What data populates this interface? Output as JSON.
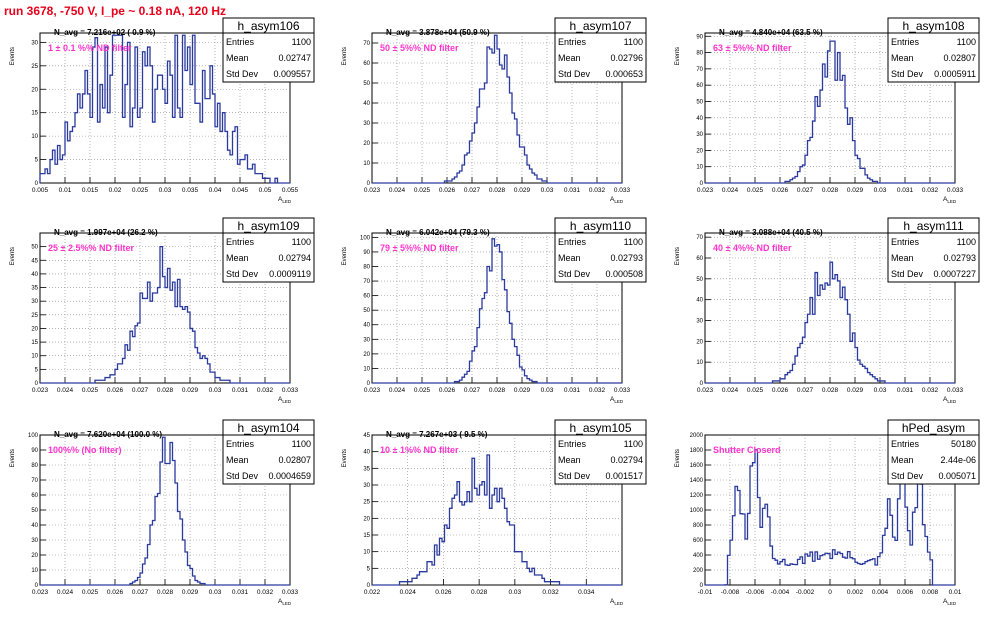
{
  "page": {
    "title": "run 3678,  -750 V, I_pe ~ 0.18 nA, 120 Hz"
  },
  "colors": {
    "histogram": "#2b3a9e",
    "title_text": "#e8001c",
    "filter_text": "#ff33cc",
    "grid": "#888888"
  },
  "stats_labels": {
    "entries": "Entries",
    "mean": "Mean",
    "std": "Std Dev"
  },
  "chart_data": [
    {
      "type": "bar",
      "name": "h_asym106",
      "entries": "1100",
      "mean": "0.02747",
      "std": "0.009557",
      "navg": "N_avg = 7.216e+02 ( 0.9 %)",
      "filter": "1 ± 0.1 %% ND filter",
      "xlabel": "A_LED",
      "ylabel": "Events",
      "xlim": [
        0.005,
        0.055
      ],
      "ylim": [
        0,
        32
      ],
      "xticks": [
        "0.005",
        "0.01",
        "0.015",
        "0.02",
        "0.025",
        "0.03",
        "0.035",
        "0.04",
        "0.045",
        "0.05",
        "0.055"
      ],
      "yticks": [
        "0",
        "5",
        "10",
        "15",
        "20",
        "25",
        "30"
      ],
      "shape": {
        "kind": "bimodal",
        "peaks": [
          [
            0.0185,
            0.006,
            26
          ],
          [
            0.035,
            0.006,
            26
          ]
        ],
        "noise": 0.5,
        "seed": 11
      }
    },
    {
      "type": "bar",
      "name": "h_asym107",
      "entries": "1100",
      "mean": "0.02796",
      "std": "0.000653",
      "navg": "N_avg = 3.878e+04 (50.9 %)",
      "filter": "50 ± 5%% ND filter",
      "xlabel": "A_LED",
      "ylabel": "Events",
      "xlim": [
        0.023,
        0.033
      ],
      "ylim": [
        0,
        75
      ],
      "xticks": [
        "0.023",
        "0.024",
        "0.025",
        "0.026",
        "0.027",
        "0.028",
        "0.029",
        "0.03",
        "0.031",
        "0.032",
        "0.033"
      ],
      "yticks": [
        "0",
        "10",
        "20",
        "30",
        "40",
        "50",
        "60",
        "70"
      ],
      "shape": {
        "kind": "gauss",
        "mu": 0.02796,
        "sigma": 0.000653,
        "peak": 68,
        "noise": 0.15,
        "seed": 7
      }
    },
    {
      "type": "bar",
      "name": "h_asym108",
      "entries": "1100",
      "mean": "0.02807",
      "std": "0.0005911",
      "navg": "N_avg = 4.840e+04 (63.5 %)",
      "filter": "63 ± 5%% ND filter",
      "xlabel": "A_LED",
      "ylabel": "Events",
      "xlim": [
        0.023,
        0.033
      ],
      "ylim": [
        0,
        92
      ],
      "xticks": [
        "0.023",
        "0.024",
        "0.025",
        "0.026",
        "0.027",
        "0.028",
        "0.029",
        "0.03",
        "0.031",
        "0.032",
        "0.033"
      ],
      "yticks": [
        "0",
        "10",
        "20",
        "30",
        "40",
        "50",
        "60",
        "70",
        "80",
        "90"
      ],
      "shape": {
        "kind": "gauss",
        "mu": 0.02807,
        "sigma": 0.000591,
        "peak": 80,
        "noise": 0.2,
        "seed": 3
      }
    },
    {
      "type": "bar",
      "name": "h_asym109",
      "entries": "1100",
      "mean": "0.02794",
      "std": "0.0009119",
      "navg": "N_avg = 1.997e+04 (26.2 %)",
      "filter": "25 ± 2.5%% ND filter",
      "xlabel": "A_LED",
      "ylabel": "Events",
      "xlim": [
        0.023,
        0.033
      ],
      "ylim": [
        0,
        55
      ],
      "xticks": [
        "0.023",
        "0.024",
        "0.025",
        "0.026",
        "0.027",
        "0.028",
        "0.029",
        "0.03",
        "0.031",
        "0.032",
        "0.033"
      ],
      "yticks": [
        "0",
        "5",
        "10",
        "15",
        "20",
        "25",
        "30",
        "35",
        "40",
        "45",
        "50"
      ],
      "shape": {
        "kind": "gauss",
        "mu": 0.02794,
        "sigma": 0.00091,
        "peak": 44,
        "noise": 0.25,
        "seed": 5
      }
    },
    {
      "type": "bar",
      "name": "h_asym110",
      "entries": "1100",
      "mean": "0.02793",
      "std": "0.000508",
      "navg": "N_avg = 6.042e+04 (79.3 %)",
      "filter": "79 ± 5%% ND filter",
      "xlabel": "A_LED",
      "ylabel": "Events",
      "xlim": [
        0.023,
        0.033
      ],
      "ylim": [
        0,
        103
      ],
      "xticks": [
        "0.023",
        "0.024",
        "0.025",
        "0.026",
        "0.027",
        "0.028",
        "0.029",
        "0.03",
        "0.031",
        "0.032",
        "0.033"
      ],
      "yticks": [
        "0",
        "10",
        "20",
        "30",
        "40",
        "50",
        "60",
        "70",
        "80",
        "90",
        "100"
      ],
      "shape": {
        "kind": "gauss",
        "mu": 0.02793,
        "sigma": 0.000508,
        "peak": 90,
        "noise": 0.12,
        "seed": 9
      }
    },
    {
      "type": "bar",
      "name": "h_asym111",
      "entries": "1100",
      "mean": "0.02793",
      "std": "0.0007227",
      "navg": "N_avg = 3.088e+04 (40.5 %)",
      "filter": "40 ± 4%% ND filter",
      "xlabel": "A_LED",
      "ylabel": "Events",
      "xlim": [
        0.023,
        0.033
      ],
      "ylim": [
        0,
        72
      ],
      "xticks": [
        "0.023",
        "0.024",
        "0.025",
        "0.026",
        "0.027",
        "0.028",
        "0.029",
        "0.03",
        "0.031",
        "0.032",
        "0.033"
      ],
      "yticks": [
        "0",
        "10",
        "20",
        "30",
        "40",
        "50",
        "60",
        "70"
      ],
      "shape": {
        "kind": "gauss",
        "mu": 0.02793,
        "sigma": 0.000723,
        "peak": 56,
        "noise": 0.2,
        "seed": 13
      }
    },
    {
      "type": "bar",
      "name": "h_asym104",
      "entries": "1100",
      "mean": "0.02807",
      "std": "0.0004659",
      "navg": "N_avg = 7.620e+04 (100.0 %)",
      "filter": "100%% (No filter)",
      "xlabel": "A_LED",
      "ylabel": "Events",
      "xlim": [
        0.023,
        0.033
      ],
      "ylim": [
        0,
        100
      ],
      "xticks": [
        "0.023",
        "0.024",
        "0.025",
        "0.026",
        "0.027",
        "0.028",
        "0.029",
        "0.03",
        "0.031",
        "0.032",
        "0.033"
      ],
      "yticks": [
        "0",
        "10",
        "20",
        "30",
        "40",
        "50",
        "60",
        "70",
        "80",
        "90",
        "100"
      ],
      "shape": {
        "kind": "gauss",
        "mu": 0.02807,
        "sigma": 0.000466,
        "peak": 90,
        "noise": 0.15,
        "seed": 21
      }
    },
    {
      "type": "bar",
      "name": "h_asym105",
      "entries": "1100",
      "mean": "0.02794",
      "std": "0.001517",
      "navg": "N_avg = 7.267e+03 ( 9.5 %)",
      "filter": "10 ± 1%% ND filter",
      "xlabel": "A_LED",
      "ylabel": "Events",
      "xlim": [
        0.022,
        0.036
      ],
      "ylim": [
        0,
        45
      ],
      "xticks": [
        "0.022",
        "0.024",
        "0.026",
        "0.028",
        "0.03",
        "0.032",
        "0.034"
      ],
      "yticks": [
        "0",
        "5",
        "10",
        "15",
        "20",
        "25",
        "30",
        "35",
        "40",
        "45"
      ],
      "shape": {
        "kind": "gauss",
        "mu": 0.02794,
        "sigma": 0.0015,
        "peak": 35,
        "noise": 0.3,
        "seed": 17
      }
    },
    {
      "type": "bar",
      "name": "hPed_asym",
      "entries": "50180",
      "mean": "2.44e-06",
      "std": "0.005071",
      "navg": "",
      "filter": "Shutter Closerd",
      "xlabel": "A_LED",
      "ylabel": "Events",
      "xlim": [
        -0.01,
        0.01
      ],
      "ylim": [
        0,
        2000
      ],
      "xticks": [
        "-0.01",
        "-0.008",
        "-0.006",
        "-0.004",
        "-0.002",
        "0",
        "0.002",
        "0.004",
        "0.006",
        "0.008",
        "0.01"
      ],
      "yticks": [
        "0",
        "200",
        "400",
        "600",
        "800",
        "1000",
        "1200",
        "1400",
        "1600",
        "1800",
        "2000"
      ],
      "shape": {
        "kind": "pedestal",
        "noise": 0.2,
        "seed": 31
      }
    }
  ]
}
